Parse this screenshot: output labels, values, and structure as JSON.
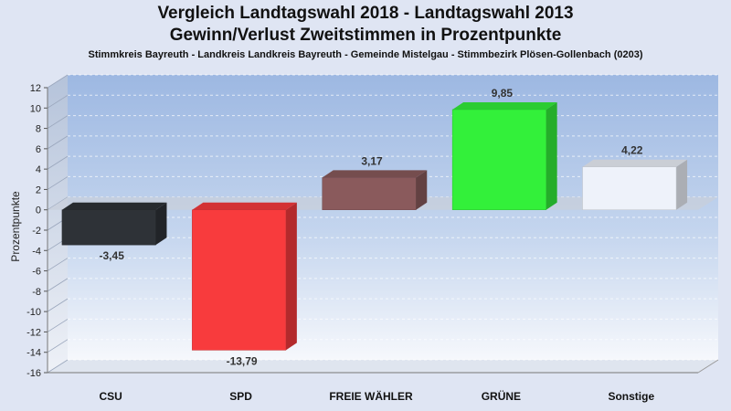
{
  "chart_data": {
    "type": "bar",
    "title": "Vergleich Landtagswahl 2018 - Landtagswahl 2013",
    "subtitle": "Gewinn/Verlust Zweitstimmen in Prozentpunkte",
    "subtitle2": "Stimmkreis Bayreuth - Landkreis Landkreis Bayreuth - Gemeinde Mistelgau - Stimmbezirk Plösen-Gollenbach (0203)",
    "ylabel": "Prozentpunkte",
    "xlabel": "",
    "ylim": [
      -16,
      12
    ],
    "yticks": [
      12,
      10,
      8,
      6,
      4,
      2,
      0,
      -2,
      -4,
      -6,
      -8,
      -10,
      -12,
      -14,
      -16
    ],
    "grid": true,
    "categories": [
      "CSU",
      "SPD",
      "FREIE WÄHLER",
      "GRÜNE",
      "Sonstige"
    ],
    "values": [
      -3.45,
      -13.79,
      3.17,
      9.85,
      4.22
    ],
    "value_labels": [
      "-3,45",
      "-13,79",
      "3,17",
      "9,85",
      "4,22"
    ],
    "colors": [
      "#2e3237",
      "#f83b3d",
      "#8a5a5c",
      "#33f03a",
      "#eef2fa"
    ]
  }
}
